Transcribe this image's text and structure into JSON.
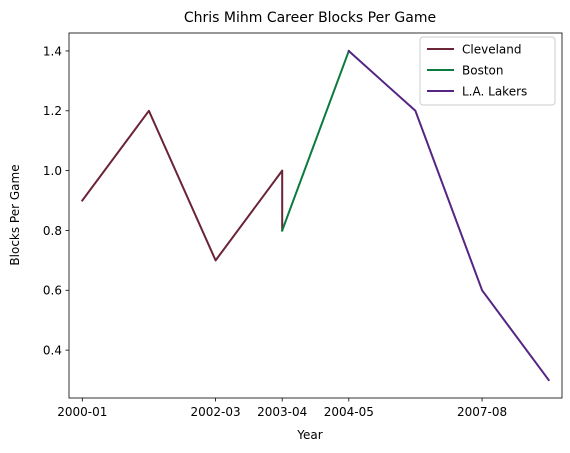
{
  "chart_data": {
    "type": "line",
    "title": "Chris Mihm Career Blocks Per Game",
    "xlabel": "Year",
    "ylabel": "Blocks Per Game",
    "x_tick_labels": [
      "2000-01",
      "2002-03",
      "2003-04",
      "2004-05",
      "2007-08"
    ],
    "x_tick_positions": [
      0,
      2,
      3,
      4,
      6
    ],
    "xlim": [
      -0.2,
      7.2
    ],
    "ylim": [
      0.24,
      1.46
    ],
    "y_ticks": [
      0.4,
      0.6,
      0.8,
      1.0,
      1.2,
      1.4
    ],
    "y_tick_labels": [
      "0.4",
      "0.6",
      "0.8",
      "1.0",
      "1.2",
      "1.4"
    ],
    "grid": false,
    "legend_location": "upper right",
    "series": [
      {
        "name": "Cleveland",
        "color": "#6b2336",
        "x": [
          0,
          1,
          2,
          3,
          3
        ],
        "y": [
          0.9,
          1.2,
          0.7,
          1.0,
          0.8
        ]
      },
      {
        "name": "Boston",
        "color": "#0a7a3e",
        "x": [
          3,
          4
        ],
        "y": [
          0.8,
          1.4
        ]
      },
      {
        "name": "L.A. Lakers",
        "color": "#552583",
        "x": [
          4,
          5,
          6,
          7
        ],
        "y": [
          1.4,
          1.2,
          0.6,
          0.3
        ]
      }
    ]
  }
}
